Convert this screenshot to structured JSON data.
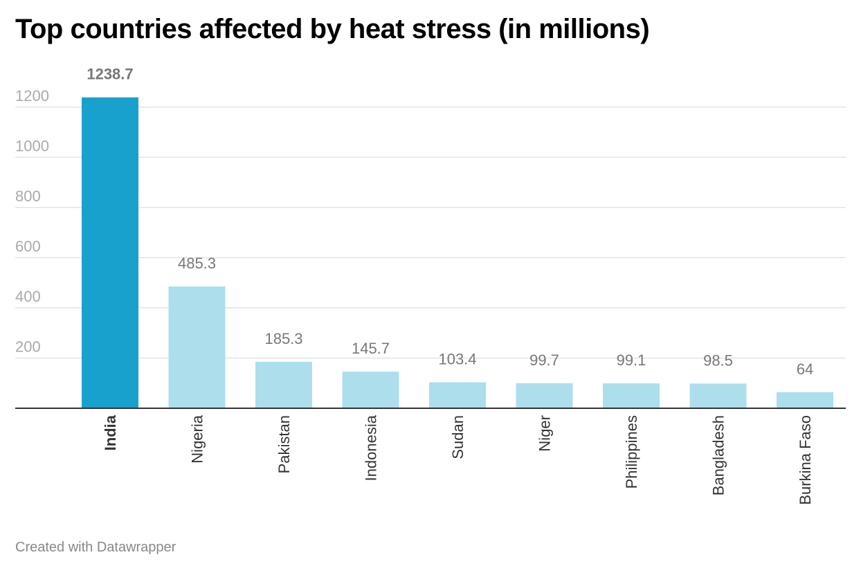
{
  "chart_data": {
    "type": "bar",
    "title": "Top countries affected by heat stress (in millions)",
    "xlabel": "",
    "ylabel": "",
    "categories": [
      "India",
      "Nigeria",
      "Pakistan",
      "Indonesia",
      "Sudan",
      "Niger",
      "Philippines",
      "Bangladesh",
      "Burkina Faso"
    ],
    "values": [
      1238.7,
      485.3,
      185.3,
      145.7,
      103.4,
      99.7,
      99.1,
      98.5,
      64
    ],
    "value_labels": [
      "1238.7",
      "485.3",
      "185.3",
      "145.7",
      "103.4",
      "99.7",
      "99.1",
      "98.5",
      "64"
    ],
    "highlighted_category": "India",
    "y_ticks": [
      200,
      400,
      600,
      800,
      1000,
      1200
    ],
    "ylim": [
      0,
      1250
    ],
    "grid": true,
    "legend": "none",
    "colors": {
      "highlight": "#18a1cd",
      "bar": "#addeec",
      "tick_label": "#aaaaaa",
      "value_label": "#777777",
      "category_label": "#333333",
      "grid": "#e3e3e3",
      "baseline": "#333333"
    }
  },
  "footer": {
    "credit": "Created with Datawrapper"
  }
}
